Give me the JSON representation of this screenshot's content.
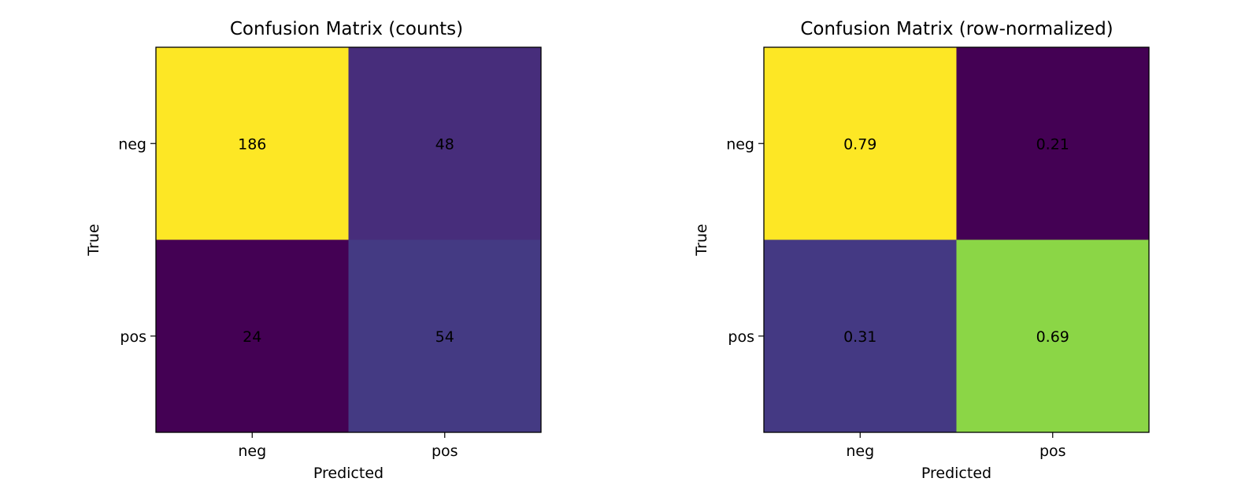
{
  "chart_data": [
    {
      "type": "heatmap",
      "title": "Confusion Matrix (counts)",
      "xlabel": "Predicted",
      "ylabel": "True",
      "x_categories": [
        "neg",
        "pos"
      ],
      "y_categories": [
        "neg",
        "pos"
      ],
      "values": [
        [
          186,
          48
        ],
        [
          24,
          54
        ]
      ],
      "value_labels": [
        [
          "186",
          "48"
        ],
        [
          "24",
          "54"
        ]
      ],
      "colormap": "viridis",
      "cell_colors": [
        [
          "#fde725",
          "#472d7b"
        ],
        [
          "#440154",
          "#443a83"
        ]
      ],
      "grid": false
    },
    {
      "type": "heatmap",
      "title": "Confusion Matrix (row-normalized)",
      "xlabel": "Predicted",
      "ylabel": "True",
      "x_categories": [
        "neg",
        "pos"
      ],
      "y_categories": [
        "neg",
        "pos"
      ],
      "values": [
        [
          0.79,
          0.21
        ],
        [
          0.31,
          0.69
        ]
      ],
      "value_labels": [
        [
          "0.79",
          "0.21"
        ],
        [
          "0.31",
          "0.69"
        ]
      ],
      "colormap": "viridis",
      "cell_colors": [
        [
          "#fde725",
          "#440154"
        ],
        [
          "#443983",
          "#8bd646"
        ]
      ],
      "grid": false
    }
  ]
}
